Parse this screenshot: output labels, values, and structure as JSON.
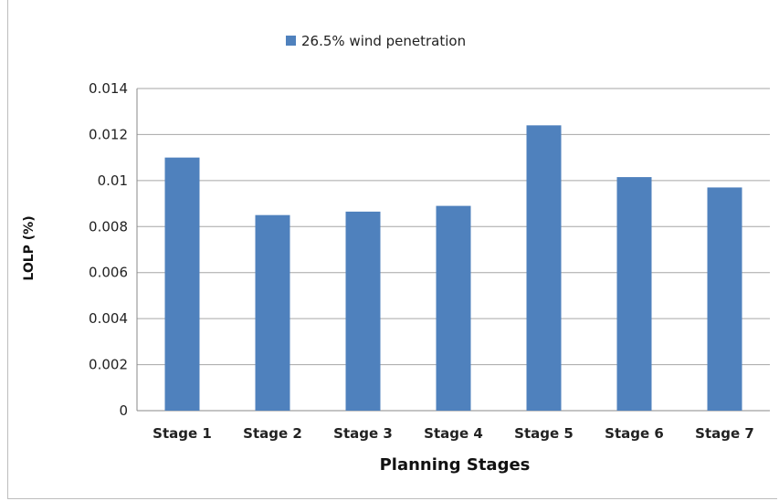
{
  "chart_data": {
    "type": "bar",
    "categories": [
      "Stage 1",
      "Stage 2",
      "Stage 3",
      "Stage 4",
      "Stage 5",
      "Stage 6",
      "Stage 7"
    ],
    "series": [
      {
        "name": "26.5% wind penetration",
        "values": [
          0.011,
          0.0085,
          0.00865,
          0.0089,
          0.0124,
          0.01015,
          0.0097
        ],
        "color": "#4f81bd"
      }
    ],
    "xlabel": "Planning Stages",
    "ylabel": "LOLP (%)",
    "ylim": [
      0,
      0.014
    ],
    "yticks": [
      "0",
      "0.002",
      "0.004",
      "0.006",
      "0.008",
      "0.01",
      "0.012",
      "0.014"
    ],
    "grid": true,
    "legend_position": "top-center"
  }
}
